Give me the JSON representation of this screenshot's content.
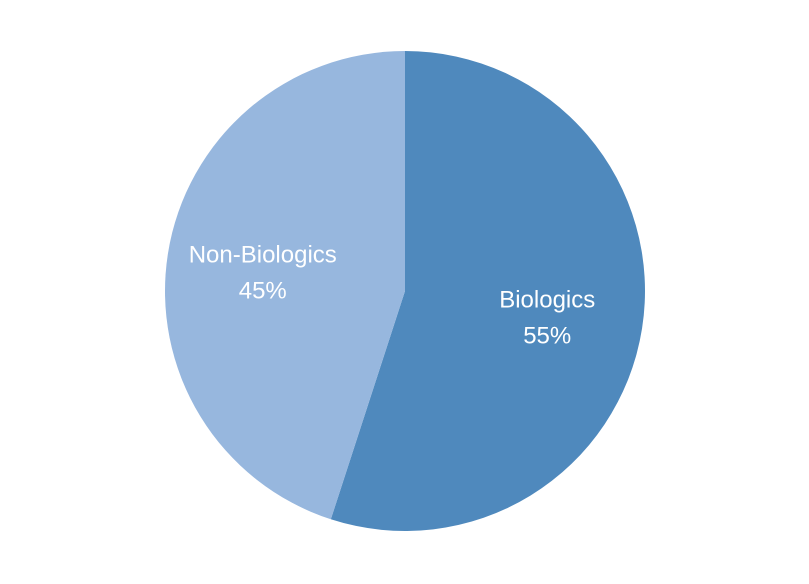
{
  "chart_data": {
    "type": "pie",
    "title": "",
    "slices": [
      {
        "category": "Biologics",
        "value": 55,
        "label": "55%",
        "color": "#4f89bd"
      },
      {
        "category": "Non-Biologics",
        "value": 45,
        "label": "45%",
        "color": "#97b7de"
      }
    ],
    "start_angle_deg": 0,
    "direction": "clockwise",
    "legend": "none"
  }
}
